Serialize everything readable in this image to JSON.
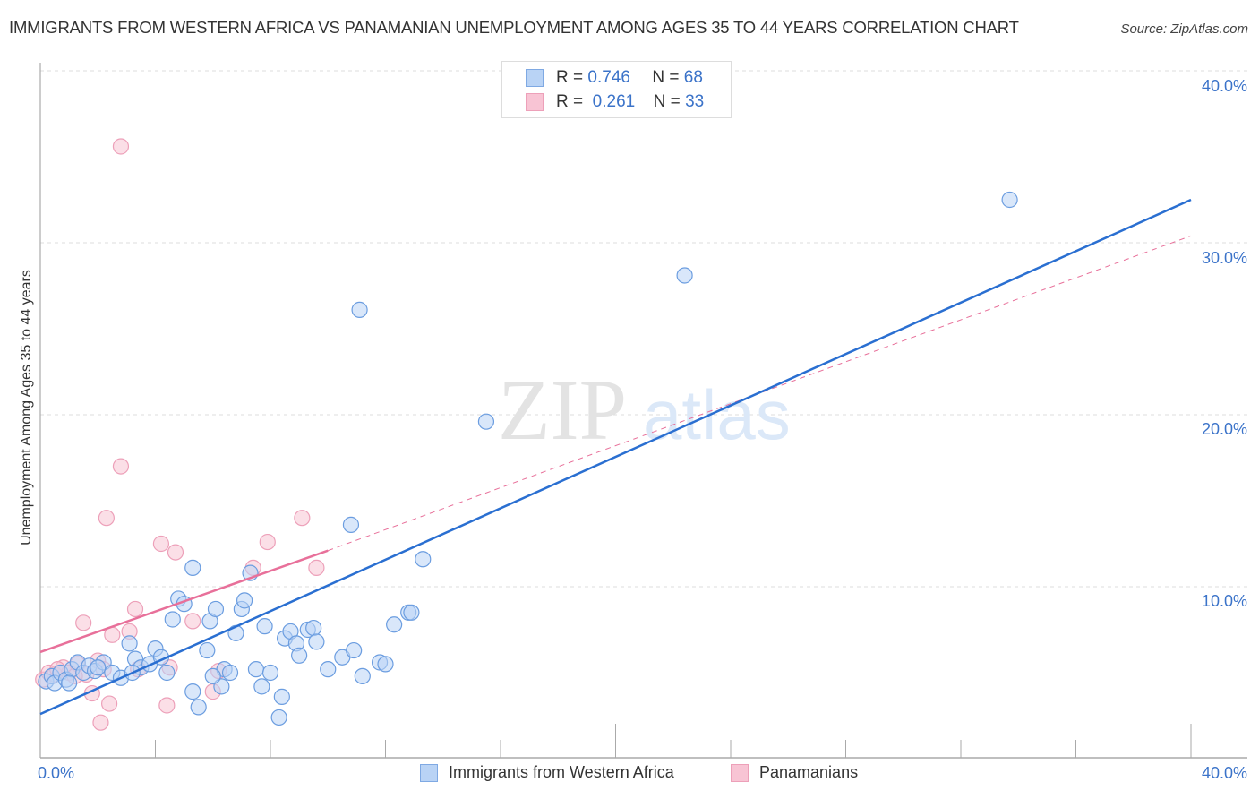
{
  "header": {
    "title": "IMMIGRANTS FROM WESTERN AFRICA VS PANAMANIAN UNEMPLOYMENT AMONG AGES 35 TO 44 YEARS CORRELATION CHART",
    "source": "Source: ZipAtlas.com"
  },
  "legend": {
    "series1": {
      "r_label": "R =",
      "r_value": "0.746",
      "n_label": "N =",
      "n_value": "68"
    },
    "series2": {
      "r_label": "R =",
      "r_value": "0.261",
      "n_label": "N =",
      "n_value": "33"
    }
  },
  "bottom_legend": {
    "series1": "Immigrants from Western Africa",
    "series2": "Panamanians"
  },
  "axes": {
    "ylabel": "Unemployment Among Ages 35 to 44 years",
    "y_ticks": [
      "40.0%",
      "30.0%",
      "20.0%",
      "10.0%"
    ],
    "x_min_label": "0.0%",
    "x_max_label": "40.0%"
  },
  "watermark": {
    "zip": "ZIP",
    "atlas": "atlas"
  },
  "colors": {
    "blue": "#3b7dd8",
    "blue_fill": "#b9d3f5",
    "pink": "#e8709a",
    "pink_fill": "#f8c4d4",
    "tick_text": "#3b73c9"
  },
  "chart_data": {
    "type": "scatter",
    "title": "IMMIGRANTS FROM WESTERN AFRICA VS PANAMANIAN UNEMPLOYMENT AMONG AGES 35 TO 44 YEARS CORRELATION CHART",
    "xlabel": "Immigrants from Western Africa / Panamanians (%)",
    "ylabel": "Unemployment Among Ages 35 to 44 years",
    "xlim": [
      0,
      40
    ],
    "ylim": [
      0,
      40
    ],
    "grid": true,
    "legend_position": "top-center and bottom",
    "series": [
      {
        "name": "Immigrants from Western Africa",
        "R": 0.746,
        "N": 68,
        "trend": {
          "x": [
            0,
            40
          ],
          "y": [
            2.6,
            32.5
          ]
        },
        "points": [
          [
            0.2,
            4.5
          ],
          [
            0.4,
            4.8
          ],
          [
            0.5,
            4.4
          ],
          [
            0.7,
            5.0
          ],
          [
            0.9,
            4.6
          ],
          [
            1.1,
            5.2
          ],
          [
            1.3,
            5.6
          ],
          [
            1.5,
            5.0
          ],
          [
            1.7,
            5.4
          ],
          [
            1.9,
            5.1
          ],
          [
            2.2,
            5.6
          ],
          [
            2.5,
            5.0
          ],
          [
            2.8,
            4.7
          ],
          [
            3.1,
            6.7
          ],
          [
            3.3,
            5.8
          ],
          [
            3.5,
            5.3
          ],
          [
            3.8,
            5.5
          ],
          [
            4.0,
            6.4
          ],
          [
            4.2,
            5.9
          ],
          [
            4.4,
            5.0
          ],
          [
            4.6,
            8.1
          ],
          [
            4.8,
            9.3
          ],
          [
            5.0,
            9.0
          ],
          [
            5.3,
            3.9
          ],
          [
            5.3,
            11.1
          ],
          [
            5.5,
            3.0
          ],
          [
            5.8,
            6.3
          ],
          [
            5.9,
            8.0
          ],
          [
            6.1,
            8.7
          ],
          [
            6.3,
            4.2
          ],
          [
            6.4,
            5.2
          ],
          [
            6.6,
            5.0
          ],
          [
            6.8,
            7.3
          ],
          [
            7.0,
            8.7
          ],
          [
            7.1,
            9.2
          ],
          [
            7.3,
            10.8
          ],
          [
            7.5,
            5.2
          ],
          [
            7.7,
            4.2
          ],
          [
            7.8,
            7.7
          ],
          [
            8.0,
            5.0
          ],
          [
            8.3,
            2.4
          ],
          [
            8.4,
            3.6
          ],
          [
            8.5,
            7.0
          ],
          [
            8.7,
            7.4
          ],
          [
            8.9,
            6.7
          ],
          [
            9.0,
            6.0
          ],
          [
            9.3,
            7.5
          ],
          [
            9.5,
            7.6
          ],
          [
            9.6,
            6.8
          ],
          [
            10.0,
            5.2
          ],
          [
            10.5,
            5.9
          ],
          [
            10.8,
            13.6
          ],
          [
            11.1,
            26.1
          ],
          [
            11.2,
            4.8
          ],
          [
            11.8,
            5.6
          ],
          [
            12.0,
            5.5
          ],
          [
            12.3,
            7.8
          ],
          [
            12.8,
            8.5
          ],
          [
            12.9,
            8.5
          ],
          [
            13.3,
            11.6
          ],
          [
            15.5,
            19.6
          ],
          [
            22.4,
            28.1
          ],
          [
            33.7,
            32.5
          ],
          [
            10.9,
            6.3
          ],
          [
            3.2,
            5.0
          ],
          [
            6.0,
            4.8
          ],
          [
            1.0,
            4.4
          ],
          [
            2.0,
            5.3
          ]
        ]
      },
      {
        "name": "Panamanians",
        "R": 0.261,
        "N": 33,
        "trend": {
          "x": [
            0,
            10
          ],
          "y": [
            6.2,
            12.1
          ]
        },
        "trend_extension_dashed": {
          "x": [
            10,
            40
          ],
          "y": [
            12.1,
            30.4
          ]
        },
        "points": [
          [
            0.1,
            4.6
          ],
          [
            0.3,
            5.0
          ],
          [
            0.5,
            4.9
          ],
          [
            0.8,
            5.3
          ],
          [
            1.0,
            5.0
          ],
          [
            1.3,
            5.5
          ],
          [
            1.5,
            7.9
          ],
          [
            1.6,
            4.9
          ],
          [
            1.8,
            3.8
          ],
          [
            2.0,
            5.7
          ],
          [
            2.1,
            2.1
          ],
          [
            2.2,
            5.2
          ],
          [
            2.3,
            14.0
          ],
          [
            2.4,
            3.2
          ],
          [
            2.5,
            7.2
          ],
          [
            2.8,
            35.6
          ],
          [
            2.8,
            17.0
          ],
          [
            3.1,
            7.4
          ],
          [
            3.3,
            8.7
          ],
          [
            3.4,
            5.2
          ],
          [
            4.2,
            12.5
          ],
          [
            4.4,
            3.1
          ],
          [
            4.5,
            5.3
          ],
          [
            4.7,
            12.0
          ],
          [
            5.3,
            8.0
          ],
          [
            6.0,
            3.9
          ],
          [
            6.2,
            5.1
          ],
          [
            7.4,
            11.1
          ],
          [
            7.9,
            12.6
          ],
          [
            9.1,
            14.0
          ],
          [
            9.6,
            11.1
          ],
          [
            1.2,
            4.8
          ],
          [
            0.6,
            5.2
          ]
        ]
      }
    ]
  }
}
